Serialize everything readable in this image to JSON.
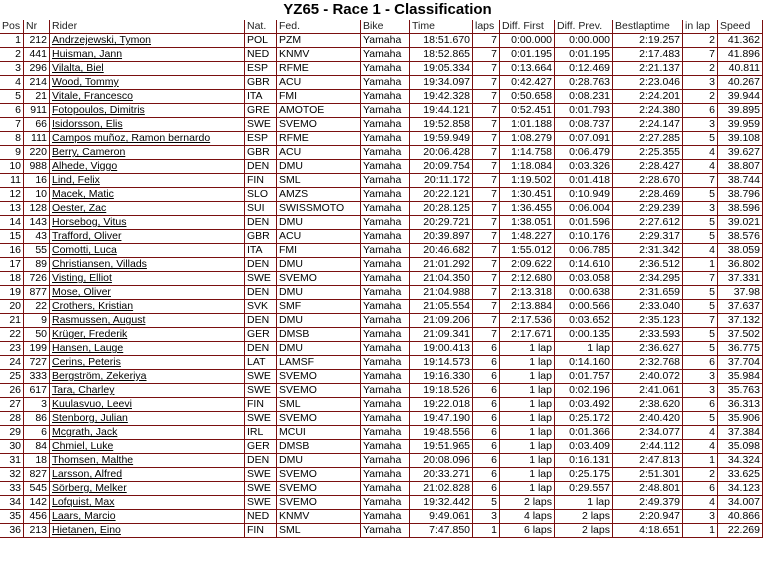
{
  "title": "YZ65 - Race 1 - Classification",
  "columns": [
    "Pos",
    "Nr",
    "Rider",
    "Nat.",
    "Fed.",
    "Bike",
    "Time",
    "laps",
    "Diff. First",
    "Diff. Prev.",
    "Bestlaptime",
    "in lap",
    "Speed"
  ],
  "border_color": "#7a0f0f",
  "rows": [
    [
      "1",
      "212",
      "Andrzejewski, Tymon",
      "POL",
      "PZM",
      "Yamaha",
      "18:51.670",
      "7",
      "0:00.000",
      "0:00.000",
      "2:19.257",
      "2",
      "41.362"
    ],
    [
      "2",
      "441",
      "Huisman, Jann",
      "NED",
      "KNMV",
      "Yamaha",
      "18:52.865",
      "7",
      "0:01.195",
      "0:01.195",
      "2:17.483",
      "7",
      "41.896"
    ],
    [
      "3",
      "296",
      "Vilalta, Biel",
      "ESP",
      "RFME",
      "Yamaha",
      "19:05.334",
      "7",
      "0:13.664",
      "0:12.469",
      "2:21.137",
      "2",
      "40.811"
    ],
    [
      "4",
      "214",
      "Wood, Tommy",
      "GBR",
      "ACU",
      "Yamaha",
      "19:34.097",
      "7",
      "0:42.427",
      "0:28.763",
      "2:23.046",
      "3",
      "40.267"
    ],
    [
      "5",
      "21",
      "Vitale, Francesco",
      "ITA",
      "FMI",
      "Yamaha",
      "19:42.328",
      "7",
      "0:50.658",
      "0:08.231",
      "2:24.201",
      "2",
      "39.944"
    ],
    [
      "6",
      "911",
      "Fotopoulos, Dimitris",
      "GRE",
      "AMOTOE",
      "Yamaha",
      "19:44.121",
      "7",
      "0:52.451",
      "0:01.793",
      "2:24.380",
      "6",
      "39.895"
    ],
    [
      "7",
      "66",
      "Isidorsson, Elis",
      "SWE",
      "SVEMO",
      "Yamaha",
      "19:52.858",
      "7",
      "1:01.188",
      "0:08.737",
      "2:24.147",
      "3",
      "39.959"
    ],
    [
      "8",
      "111",
      "Campos muñoz, Ramon bernardo",
      "ESP",
      "RFME",
      "Yamaha",
      "19:59.949",
      "7",
      "1:08.279",
      "0:07.091",
      "2:27.285",
      "5",
      "39.108"
    ],
    [
      "9",
      "220",
      "Berry, Cameron",
      "GBR",
      "ACU",
      "Yamaha",
      "20:06.428",
      "7",
      "1:14.758",
      "0:06.479",
      "2:25.355",
      "4",
      "39.627"
    ],
    [
      "10",
      "988",
      "Alhede, Viggo",
      "DEN",
      "DMU",
      "Yamaha",
      "20:09.754",
      "7",
      "1:18.084",
      "0:03.326",
      "2:28.427",
      "4",
      "38.807"
    ],
    [
      "11",
      "16",
      "Lind, Felix",
      "FIN",
      "SML",
      "Yamaha",
      "20:11.172",
      "7",
      "1:19.502",
      "0:01.418",
      "2:28.670",
      "7",
      "38.744"
    ],
    [
      "12",
      "10",
      "Macek, Matic",
      "SLO",
      "AMZS",
      "Yamaha",
      "20:22.121",
      "7",
      "1:30.451",
      "0:10.949",
      "2:28.469",
      "5",
      "38.796"
    ],
    [
      "13",
      "128",
      "Oester, Zac",
      "SUI",
      "SWISSMOTO",
      "Yamaha",
      "20:28.125",
      "7",
      "1:36.455",
      "0:06.004",
      "2:29.239",
      "3",
      "38.596"
    ],
    [
      "14",
      "143",
      "Horsebog, Vitus",
      "DEN",
      "DMU",
      "Yamaha",
      "20:29.721",
      "7",
      "1:38.051",
      "0:01.596",
      "2:27.612",
      "5",
      "39.021"
    ],
    [
      "15",
      "43",
      "Trafford, Oliver",
      "GBR",
      "ACU",
      "Yamaha",
      "20:39.897",
      "7",
      "1:48.227",
      "0:10.176",
      "2:29.317",
      "5",
      "38.576"
    ],
    [
      "16",
      "55",
      "Comotti, Luca",
      "ITA",
      "FMI",
      "Yamaha",
      "20:46.682",
      "7",
      "1:55.012",
      "0:06.785",
      "2:31.342",
      "4",
      "38.059"
    ],
    [
      "17",
      "89",
      "Christiansen, Villads",
      "DEN",
      "DMU",
      "Yamaha",
      "21:01.292",
      "7",
      "2:09.622",
      "0:14.610",
      "2:36.512",
      "1",
      "36.802"
    ],
    [
      "18",
      "726",
      "Visting, Elliot",
      "SWE",
      "SVEMO",
      "Yamaha",
      "21:04.350",
      "7",
      "2:12.680",
      "0:03.058",
      "2:34.295",
      "7",
      "37.331"
    ],
    [
      "19",
      "877",
      "Mose, Oliver",
      "DEN",
      "DMU",
      "Yamaha",
      "21:04.988",
      "7",
      "2:13.318",
      "0:00.638",
      "2:31.659",
      "5",
      "37.98"
    ],
    [
      "20",
      "22",
      "Crothers, Kristian",
      "SVK",
      "SMF",
      "Yamaha",
      "21:05.554",
      "7",
      "2:13.884",
      "0:00.566",
      "2:33.040",
      "5",
      "37.637"
    ],
    [
      "21",
      "9",
      "Rasmussen, August",
      "DEN",
      "DMU",
      "Yamaha",
      "21:09.206",
      "7",
      "2:17.536",
      "0:03.652",
      "2:35.123",
      "7",
      "37.132"
    ],
    [
      "22",
      "50",
      "Krüger, Frederik",
      "GER",
      "DMSB",
      "Yamaha",
      "21:09.341",
      "7",
      "2:17.671",
      "0:00.135",
      "2:33.593",
      "5",
      "37.502"
    ],
    [
      "23",
      "199",
      "Hansen, Lauge",
      "DEN",
      "DMU",
      "Yamaha",
      "19:00.413",
      "6",
      "1 lap",
      "1 lap",
      "2:36.627",
      "5",
      "36.775"
    ],
    [
      "24",
      "727",
      "Cerins, Peteris",
      "LAT",
      "LAMSF",
      "Yamaha",
      "19:14.573",
      "6",
      "1 lap",
      "0:14.160",
      "2:32.768",
      "6",
      "37.704"
    ],
    [
      "25",
      "333",
      "Bergström, Zekeriya",
      "SWE",
      "SVEMO",
      "Yamaha",
      "19:16.330",
      "6",
      "1 lap",
      "0:01.757",
      "2:40.072",
      "3",
      "35.984"
    ],
    [
      "26",
      "617",
      "Tara, Charley",
      "SWE",
      "SVEMO",
      "Yamaha",
      "19:18.526",
      "6",
      "1 lap",
      "0:02.196",
      "2:41.061",
      "3",
      "35.763"
    ],
    [
      "27",
      "3",
      "Kuulasvuo, Leevi",
      "FIN",
      "SML",
      "Yamaha",
      "19:22.018",
      "6",
      "1 lap",
      "0:03.492",
      "2:38.620",
      "6",
      "36.313"
    ],
    [
      "28",
      "86",
      "Stenborg, Julian",
      "SWE",
      "SVEMO",
      "Yamaha",
      "19:47.190",
      "6",
      "1 lap",
      "0:25.172",
      "2:40.420",
      "5",
      "35.906"
    ],
    [
      "29",
      "6",
      "Mcgrath, Jack",
      "IRL",
      "MCUI",
      "Yamaha",
      "19:48.556",
      "6",
      "1 lap",
      "0:01.366",
      "2:34.077",
      "4",
      "37.384"
    ],
    [
      "30",
      "84",
      "Chmiel, Luke",
      "GER",
      "DMSB",
      "Yamaha",
      "19:51.965",
      "6",
      "1 lap",
      "0:03.409",
      "2:44.112",
      "4",
      "35.098"
    ],
    [
      "31",
      "18",
      "Thomsen, Malthe",
      "DEN",
      "DMU",
      "Yamaha",
      "20:08.096",
      "6",
      "1 lap",
      "0:16.131",
      "2:47.813",
      "1",
      "34.324"
    ],
    [
      "32",
      "827",
      "Larsson, Alfred",
      "SWE",
      "SVEMO",
      "Yamaha",
      "20:33.271",
      "6",
      "1 lap",
      "0:25.175",
      "2:51.301",
      "2",
      "33.625"
    ],
    [
      "33",
      "545",
      "Sörberg, Melker",
      "SWE",
      "SVEMO",
      "Yamaha",
      "21:02.828",
      "6",
      "1 lap",
      "0:29.557",
      "2:48.801",
      "6",
      "34.123"
    ],
    [
      "34",
      "142",
      "Lofquist, Max",
      "SWE",
      "SVEMO",
      "Yamaha",
      "19:32.442",
      "5",
      "2 laps",
      "1 lap",
      "2:49.379",
      "4",
      "34.007"
    ],
    [
      "35",
      "456",
      "Laars, Marcio",
      "NED",
      "KNMV",
      "Yamaha",
      "9:49.061",
      "3",
      "4 laps",
      "2 laps",
      "2:20.947",
      "3",
      "40.866"
    ],
    [
      "36",
      "213",
      "Hietanen, Eino",
      "FIN",
      "SML",
      "Yamaha",
      "7:47.850",
      "1",
      "6 laps",
      "2 laps",
      "4:18.651",
      "1",
      "22.269"
    ]
  ]
}
